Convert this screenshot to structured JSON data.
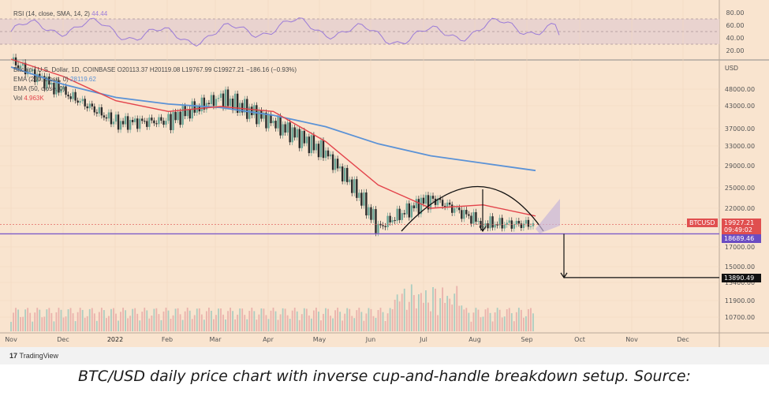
{
  "colors": {
    "background": "#f9e4cf",
    "candle_up": "#6aa596",
    "candle_down": "#2b2b2b",
    "ema200": "#5b92d6",
    "ema50": "#e3434b",
    "rsi_line": "#9b7bd8",
    "support_line": "#7d5bc9",
    "btcusd_tag": "#e04f4f",
    "support_tag": "#6b4cc2",
    "target_tag": "#111111",
    "volume": "#e8a9a6"
  },
  "header": {
    "rsi_legend": "RSI (14, close, SMA, 14, 2)",
    "rsi_value": "44.44"
  },
  "legend": {
    "ohlc": "Bitcoin / U.S. Dollar, 1D, COINBASE  O20113.37  H20119.08  L19767.99  C19927.21  −186.16 (−0.93%)",
    "ema200_label": "EMA (200, close, 0)",
    "ema200_value": "28119.62",
    "ema50_label": "EMA (50, close, 0)",
    "vol_label": "Vol",
    "vol_value": "4.963K"
  },
  "axis": {
    "currency": "USD",
    "rsi_ticks": [
      "80.00",
      "60.00",
      "40.00",
      "20.00"
    ],
    "price_ticks": [
      "48000.00",
      "43000.00",
      "37000.00",
      "33000.00",
      "29000.00",
      "25000.00",
      "22000.00",
      "17000.00",
      "15000.00",
      "13400.00",
      "11900.00",
      "10700.00"
    ],
    "months": [
      "Nov",
      "Dec",
      "2022",
      "Feb",
      "Mar",
      "Apr",
      "May",
      "Jun",
      "Jul",
      "Aug",
      "Sep",
      "Oct",
      "Nov",
      "Dec"
    ]
  },
  "tags": {
    "btcusd_name": "BTCUSD",
    "btcusd_price": "19927.21",
    "countdown": "09:49:02",
    "support": "18689.46",
    "target": "13890.49"
  },
  "branding": {
    "name": "TradingView"
  },
  "caption": "BTC/USD daily price chart with inverse cup-and-handle breakdown setup. Source:",
  "chart_data": {
    "type": "candlestick",
    "title": "Bitcoin / U.S. Dollar, 1D, COINBASE",
    "ylabel": "USD",
    "x": [
      "Nov 2021",
      "Dec 2021",
      "Jan 2022",
      "Feb 2022",
      "Mar 2022",
      "Apr 2022",
      "May 2022",
      "Jun 2022",
      "Jul 2022",
      "Aug 2022",
      "Sep 2022"
    ],
    "close": [
      57000,
      47000,
      38500,
      39000,
      45500,
      38500,
      31500,
      19500,
      23500,
      20000,
      19927
    ],
    "ema200": [
      55000,
      49500,
      45500,
      43500,
      42500,
      40500,
      37500,
      33500,
      31000,
      29500,
      28119
    ],
    "ema50": [
      57500,
      52000,
      44500,
      41500,
      42800,
      41500,
      34000,
      25500,
      22000,
      22500,
      21000
    ],
    "support_level": 18689.46,
    "breakdown_target": 13890.49,
    "last_close": 19927.21,
    "rsi_latest": 44.44,
    "volume_latest_k": 4.963
  }
}
